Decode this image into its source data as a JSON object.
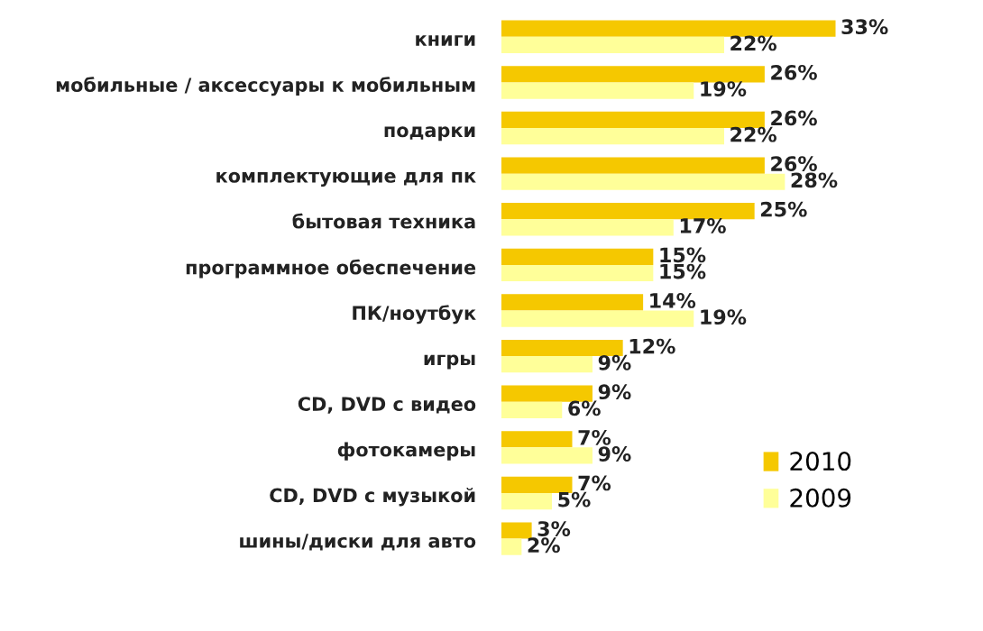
{
  "chart_data": {
    "type": "bar",
    "orientation": "horizontal",
    "legend": "bottom right",
    "grid": false,
    "categories": [
      "книги",
      "мобильные / аксессуары к мобильным",
      "подарки",
      "комплектующие для пк",
      "бытовая техника",
      "программное обеспечение",
      "ПК/ноутбук",
      "игры",
      "CD, DVD с видео",
      "фотокамеры",
      "CD, DVD с музыкой",
      "шины/диски для авто"
    ],
    "series": [
      {
        "name": "2010",
        "color": "#f5c800",
        "values": [
          33,
          26,
          26,
          26,
          25,
          15,
          14,
          12,
          9,
          7,
          7,
          3
        ],
        "value_labels": [
          "33%",
          "26%",
          "26%",
          "26%",
          "25%",
          "15%",
          "14%",
          "12%",
          "9%",
          "7%",
          "7%",
          "3%"
        ]
      },
      {
        "name": "2009",
        "color": "#ffff99",
        "values": [
          22,
          19,
          22,
          28,
          17,
          15,
          19,
          9,
          6,
          9,
          5,
          2
        ],
        "value_labels": [
          "22%",
          "19%",
          "22%",
          "28%",
          "17%",
          "15%",
          "19%",
          "9%",
          "6%",
          "9%",
          "5%",
          "2%"
        ]
      }
    ]
  }
}
